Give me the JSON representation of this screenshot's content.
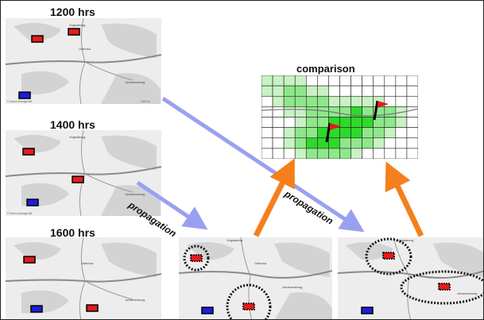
{
  "panels": {
    "t1200": {
      "label": "1200 hrs"
    },
    "t1400": {
      "label": "1400 hrs"
    },
    "t1600": {
      "label": "1600 hrs"
    }
  },
  "comparison": {
    "label": "comparison"
  },
  "propagation": {
    "label_1": "propagation",
    "label_2": "propagation"
  },
  "map_labels": {
    "town_north": "Vrigstaberg",
    "town_center": "Ostbrina",
    "town_east": "Johannesberg",
    "copyright": "© Esero Sverige AB",
    "scale": "1000 m"
  },
  "colors": {
    "map_bg": "#ededed",
    "map_patch": "#d3d3d3",
    "road": "#8a8a8a",
    "red_unit": "#e41b1b",
    "blue_unit": "#1c1ce0",
    "green_light": "#c9f2c4",
    "green_mid": "#8ee88a",
    "green_dark": "#2ed92b",
    "prop_arrow": "#9aa0f0",
    "comp_arrow": "#f57f1c",
    "flag": "#e41b1b"
  }
}
